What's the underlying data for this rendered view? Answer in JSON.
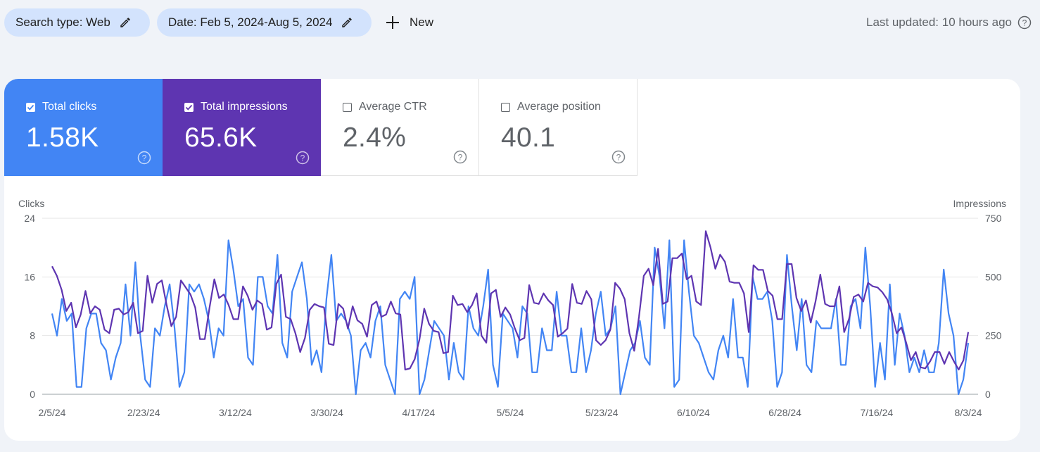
{
  "filters": {
    "search_type": "Search type: Web",
    "date_range": "Date: Feb 5, 2024-Aug 5, 2024",
    "new_label": "New"
  },
  "last_updated": "Last updated: 10 hours ago",
  "metrics": {
    "clicks": {
      "label": "Total clicks",
      "value": "1.58K",
      "checked": true,
      "color": "#4285f4"
    },
    "impressions": {
      "label": "Total impressions",
      "value": "65.6K",
      "checked": true,
      "color": "#5e35b1"
    },
    "ctr": {
      "label": "Average CTR",
      "value": "2.4%",
      "checked": false
    },
    "position": {
      "label": "Average position",
      "value": "40.1",
      "checked": false
    }
  },
  "chart_data": {
    "type": "line",
    "y_left_label": "Clicks",
    "y_right_label": "Impressions",
    "y_left_ticks": [
      "0",
      "8",
      "16",
      "24"
    ],
    "y_right_ticks": [
      "0",
      "250",
      "500",
      "750"
    ],
    "ylim_left": [
      0,
      24
    ],
    "ylim_right": [
      0,
      750
    ],
    "x_ticks": [
      "2/5/24",
      "2/23/24",
      "3/12/24",
      "3/30/24",
      "4/17/24",
      "5/5/24",
      "5/23/24",
      "6/10/24",
      "6/28/24",
      "7/16/24",
      "8/3/24"
    ],
    "grid": true,
    "series": [
      {
        "name": "Clicks",
        "axis": "left",
        "color": "#4285f4",
        "values": [
          11,
          8,
          13,
          10,
          11,
          1,
          1,
          9,
          11,
          11,
          7,
          6,
          2,
          5,
          7,
          15,
          8,
          18,
          8,
          2,
          1,
          9,
          8,
          12,
          15,
          9,
          1,
          3,
          15,
          14,
          15,
          13,
          10,
          5,
          9,
          8,
          21,
          17,
          12,
          13,
          5,
          4,
          16,
          16,
          12,
          11,
          19,
          7,
          5,
          14,
          16,
          18,
          13,
          4,
          6,
          3,
          13,
          19,
          10,
          11,
          10,
          8,
          0,
          6,
          7,
          5,
          10,
          12,
          4,
          2,
          0,
          13,
          14,
          13,
          16,
          0,
          2,
          6,
          10,
          9,
          8,
          2,
          7,
          3,
          2,
          12,
          9,
          8,
          12,
          17,
          4,
          1,
          11,
          10,
          9,
          5,
          12,
          11,
          3,
          3,
          9,
          6,
          6,
          14,
          8,
          8,
          3,
          3,
          9,
          3,
          6,
          11,
          14,
          8,
          9,
          12,
          0,
          3,
          6,
          7,
          10,
          5,
          4,
          20,
          16,
          9,
          21,
          1,
          2,
          21,
          14,
          8,
          7,
          5,
          3,
          2,
          6,
          8,
          5,
          13,
          5,
          5,
          1,
          16,
          13,
          13,
          14,
          10,
          1,
          3,
          19,
          12,
          6,
          13,
          4,
          3,
          10,
          9,
          9,
          9,
          13,
          4,
          4,
          12,
          13,
          9,
          20,
          12,
          1,
          7,
          2,
          15,
          4,
          11,
          8,
          3,
          5,
          3,
          6,
          3,
          3,
          7,
          17,
          11,
          8,
          0,
          2,
          7
        ]
      },
      {
        "name": "Impressions",
        "axis": "right",
        "color": "#5e35b1",
        "values": [
          545,
          505,
          445,
          355,
          390,
          285,
          340,
          440,
          345,
          375,
          360,
          275,
          260,
          360,
          365,
          340,
          350,
          390,
          260,
          270,
          505,
          390,
          470,
          485,
          380,
          290,
          330,
          485,
          455,
          425,
          370,
          235,
          235,
          370,
          490,
          410,
          425,
          380,
          320,
          320,
          460,
          420,
          360,
          400,
          385,
          275,
          285,
          470,
          510,
          330,
          320,
          260,
          180,
          240,
          360,
          385,
          375,
          370,
          215,
          210,
          385,
          365,
          280,
          375,
          315,
          300,
          245,
          380,
          395,
          330,
          340,
          395,
          345,
          340,
          105,
          110,
          150,
          235,
          365,
          300,
          270,
          265,
          175,
          180,
          420,
          380,
          385,
          350,
          380,
          430,
          250,
          220,
          430,
          445,
          330,
          370,
          340,
          280,
          230,
          240,
          465,
          390,
          385,
          430,
          400,
          380,
          245,
          260,
          280,
          470,
          390,
          385,
          440,
          405,
          230,
          210,
          230,
          275,
          475,
          450,
          405,
          260,
          185,
          330,
          505,
          535,
          465,
          620,
          385,
          395,
          580,
          580,
          600,
          490,
          505,
          395,
          380,
          695,
          625,
          535,
          595,
          565,
          480,
          475,
          475,
          430,
          265,
          550,
          530,
          530,
          440,
          420,
          320,
          320,
          555,
          555,
          410,
          355,
          400,
          305,
          395,
          510,
          385,
          375,
          375,
          460,
          265,
          320,
          415,
          425,
          395,
          475,
          460,
          455,
          435,
          405,
          345,
          260,
          285,
          220,
          145,
          180,
          115,
          110,
          140,
          180,
          180,
          130,
          180,
          140,
          105,
          145,
          265
        ]
      }
    ]
  }
}
